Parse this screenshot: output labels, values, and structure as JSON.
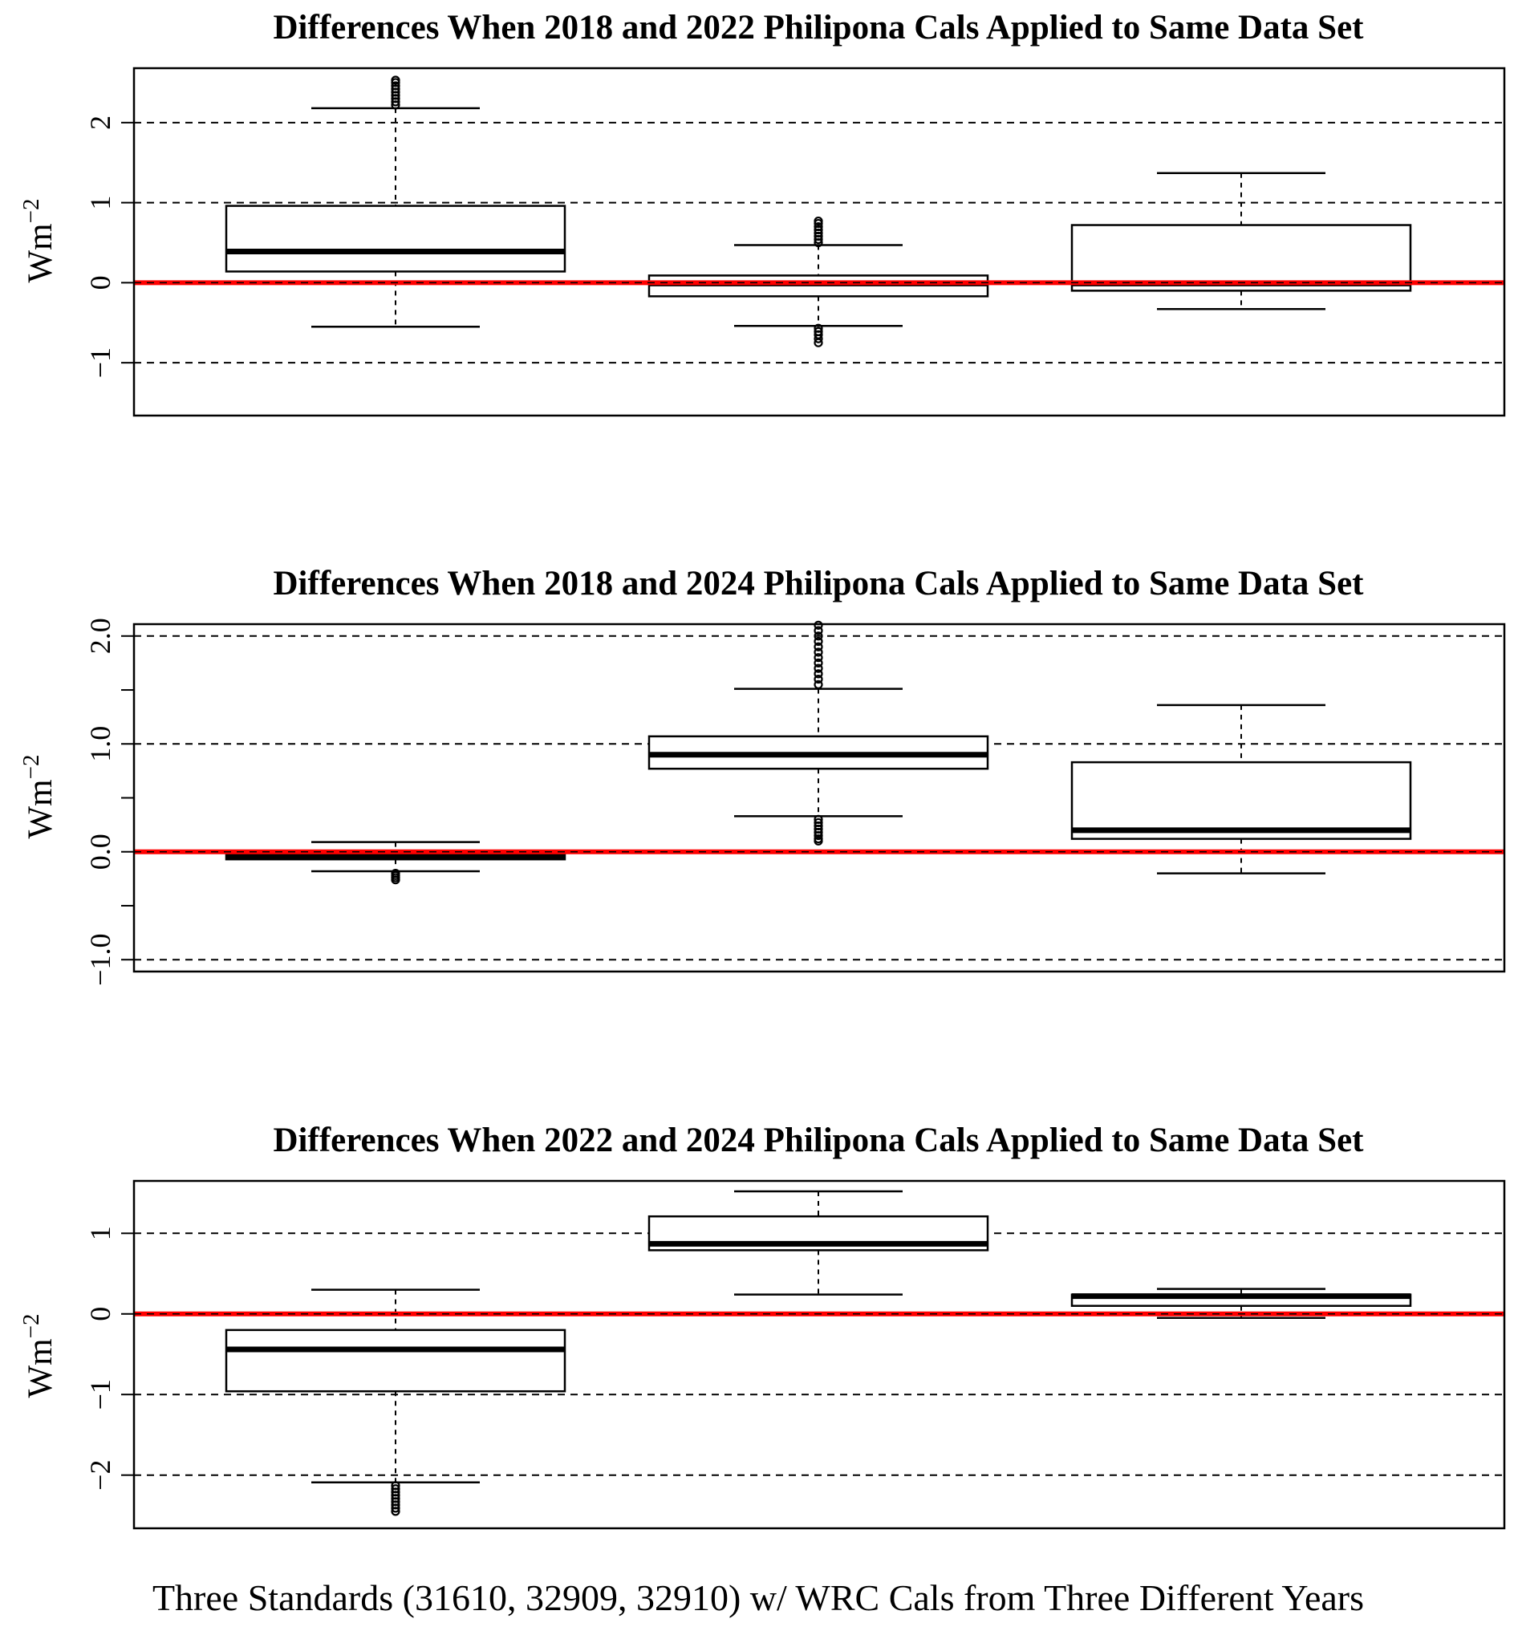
{
  "figure": {
    "x_caption": "Three Standards (31610, 32909, 32910) w/ WRC Cals from Three Different Years"
  },
  "colors": {
    "reference_line": "#ff0000",
    "box_stroke": "#000000",
    "grid": "#000000"
  },
  "chart_data": [
    {
      "type": "box",
      "title": "Differences When 2018 and 2022 Philipona Cals Applied to Same Data Set",
      "ylabel": "Wm",
      "ylabel_superscript": "−2",
      "ylim": [
        -1.66,
        2.68
      ],
      "yticks": [
        -1,
        0,
        1,
        2
      ],
      "ytick_labels": [
        "−1",
        "0",
        "1",
        "2"
      ],
      "grid_lines": [
        -1,
        1,
        2
      ],
      "reference_line": 0,
      "grid": "dashed horizontal",
      "boxes": [
        {
          "whisker_low": -0.55,
          "q1": 0.14,
          "median": 0.39,
          "q3": 0.96,
          "whisker_high": 2.18,
          "outliers": [
            2.22,
            2.26,
            2.3,
            2.34,
            2.38,
            2.42,
            2.46,
            2.5,
            2.53
          ]
        },
        {
          "whisker_low": -0.54,
          "q1": -0.17,
          "median": -0.01,
          "q3": 0.09,
          "whisker_high": 0.47,
          "outliers": [
            0.5,
            0.54,
            0.58,
            0.62,
            0.66,
            0.7,
            0.74,
            0.77,
            -0.57,
            -0.61,
            -0.65,
            -0.7,
            -0.75
          ]
        },
        {
          "whisker_low": -0.33,
          "q1": -0.1,
          "median": -0.01,
          "q3": 0.72,
          "whisker_high": 1.37,
          "outliers": []
        }
      ]
    },
    {
      "type": "box",
      "title": "Differences When 2018 and 2024 Philipona Cals Applied to Same Data Set",
      "ylabel": "Wm",
      "ylabel_superscript": "−2",
      "ylim": [
        -1.11,
        2.11
      ],
      "yticks": [
        -1.0,
        -0.5,
        0.0,
        0.5,
        1.0,
        1.5,
        2.0
      ],
      "ytick_labels": [
        "−1.0",
        "",
        "0.0",
        "",
        "1.0",
        "",
        "2.0"
      ],
      "grid_lines": [
        -1.0,
        1.0,
        2.0
      ],
      "reference_line": 0,
      "grid": "dashed horizontal",
      "boxes": [
        {
          "whisker_low": -0.18,
          "q1": -0.07,
          "median": -0.05,
          "q3": -0.03,
          "whisker_high": 0.09,
          "outliers": [
            -0.2,
            -0.22,
            -0.24,
            -0.26
          ]
        },
        {
          "whisker_low": 0.33,
          "q1": 0.77,
          "median": 0.9,
          "q3": 1.07,
          "whisker_high": 1.51,
          "outliers": [
            1.55,
            1.6,
            1.65,
            1.7,
            1.75,
            1.8,
            1.85,
            1.9,
            1.95,
            2.0,
            2.05,
            2.1,
            0.3,
            0.27,
            0.24,
            0.21,
            0.18,
            0.15,
            0.12,
            0.1
          ]
        },
        {
          "whisker_low": -0.2,
          "q1": 0.12,
          "median": 0.2,
          "q3": 0.83,
          "whisker_high": 1.36,
          "outliers": []
        }
      ]
    },
    {
      "type": "box",
      "title": "Differences When 2022 and 2024 Philipona Cals Applied to Same Data Set",
      "ylabel": "Wm",
      "ylabel_superscript": "−2",
      "ylim": [
        -2.66,
        1.65
      ],
      "yticks": [
        -2,
        -1,
        0,
        1
      ],
      "ytick_labels": [
        "−2",
        "−1",
        "0",
        "1"
      ],
      "grid_lines": [
        -2,
        -1,
        1
      ],
      "reference_line": 0,
      "grid": "dashed horizontal",
      "boxes": [
        {
          "whisker_low": -2.09,
          "q1": -0.96,
          "median": -0.44,
          "q3": -0.2,
          "whisker_high": 0.3,
          "outliers": [
            -2.13,
            -2.17,
            -2.21,
            -2.25,
            -2.29,
            -2.33,
            -2.37,
            -2.41,
            -2.45
          ]
        },
        {
          "whisker_low": 0.24,
          "q1": 0.79,
          "median": 0.87,
          "q3": 1.21,
          "whisker_high": 1.52,
          "outliers": []
        },
        {
          "whisker_low": -0.05,
          "q1": 0.1,
          "median": 0.22,
          "q3": 0.24,
          "whisker_high": 0.31,
          "outliers": []
        }
      ]
    }
  ]
}
